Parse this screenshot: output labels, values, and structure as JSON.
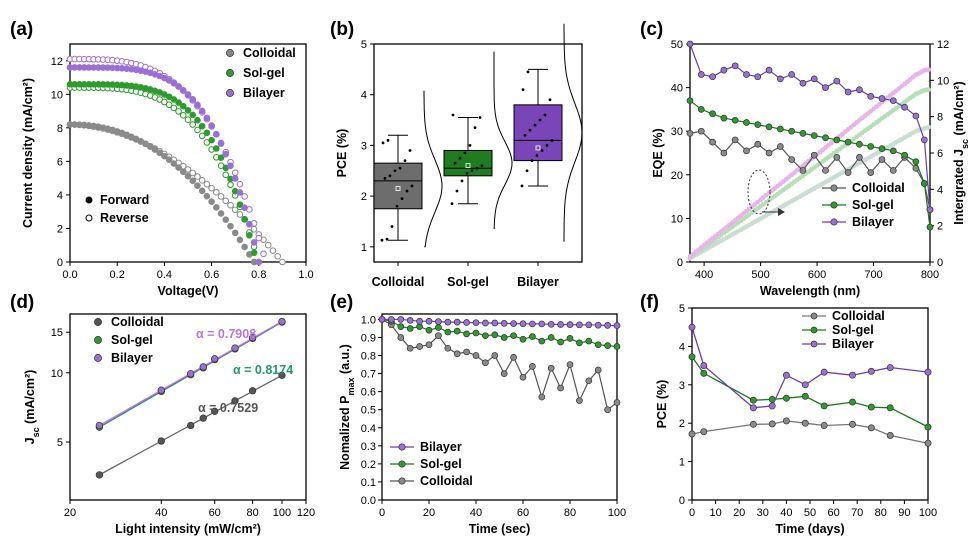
{
  "colors": {
    "colloidal": "#8a8a8a",
    "colloidal_dark": "#555555",
    "solgel": "#2e9b2e",
    "solgel_dark": "#1a7a1a",
    "bilayer": "#9a6fd8",
    "bilayer_dark": "#6a3fb0",
    "alpha_colloidal": "#555555",
    "alpha_solgel": "#1f9a6a",
    "alpha_bilayer": "#b277e0"
  },
  "chart_data": [
    {
      "id": "a",
      "panel_label": "(a)",
      "type": "scatter",
      "xlabel": "Voltage(V)",
      "ylabel": "Current density (mA/cm²)",
      "xlim": [
        0,
        1.0
      ],
      "ylim": [
        0,
        13
      ],
      "xticks": [
        "0.0",
        "0.2",
        "0.4",
        "0.6",
        "0.8",
        "1.0"
      ],
      "yticks": [
        "0",
        "2",
        "4",
        "6",
        "8",
        "10",
        "12"
      ],
      "series": [
        {
          "name": "Colloidal",
          "jsc": 8.2,
          "voc_forward": 0.78,
          "voc_reverse": 0.9,
          "shape_forward": 2.2,
          "shape_reverse": 1.9
        },
        {
          "name": "Sol-gel",
          "jsc": 10.6,
          "voc_forward": 0.79,
          "voc_reverse": 0.8,
          "shape_forward": 4.2,
          "shape_reverse": 3.6,
          "jsc_reverse": 10.4
        },
        {
          "name": "Bilayer",
          "jsc": 11.6,
          "voc_forward": 0.8,
          "voc_reverse": 0.83,
          "shape_forward": 4.2,
          "shape_reverse": 3.4,
          "jsc_reverse": 12.1
        }
      ],
      "legend_series": [
        "Colloidal",
        "Sol-gel",
        "Bilayer"
      ],
      "legend_scan": [
        "Forward",
        "Reverse"
      ]
    },
    {
      "id": "b",
      "panel_label": "(b)",
      "type": "box",
      "xlabel": "",
      "ylabel": "PCE (%)",
      "ylim": [
        0.7,
        5
      ],
      "yticks": [
        "1",
        "2",
        "3",
        "4",
        "5"
      ],
      "categories": [
        "Colloidal",
        "Sol-gel",
        "Bilayer"
      ],
      "boxes": [
        {
          "q1": 1.75,
          "median": 2.3,
          "q3": 2.65,
          "mean": 2.15,
          "whisker_low": 1.13,
          "whisker_high": 3.2,
          "points": [
            1.13,
            1.15,
            1.4,
            1.8,
            1.95,
            2.1,
            2.2,
            2.35,
            2.4,
            2.5,
            2.55,
            2.7,
            2.9,
            3.05,
            3.1
          ]
        },
        {
          "q1": 2.4,
          "median": 2.55,
          "q3": 2.9,
          "mean": 2.6,
          "whisker_low": 1.85,
          "whisker_high": 3.55,
          "points": [
            1.85,
            2.1,
            2.3,
            2.45,
            2.5,
            2.55,
            2.6,
            2.65,
            2.75,
            2.85,
            3.0,
            3.35,
            3.55,
            3.6
          ]
        },
        {
          "q1": 2.7,
          "median": 3.1,
          "q3": 3.8,
          "mean": 2.95,
          "whisker_low": 2.2,
          "whisker_high": 4.5,
          "points": [
            2.2,
            2.5,
            2.7,
            2.8,
            2.9,
            3.0,
            3.1,
            3.2,
            3.3,
            3.4,
            3.5,
            3.6,
            3.9,
            4.1,
            4.45
          ]
        }
      ]
    },
    {
      "id": "c",
      "panel_label": "(c)",
      "type": "line",
      "xlabel": "Wavelength (nm)",
      "ylabel": "EQE (%)",
      "y2label": "Intergrated J",
      "y2label_sub": "sc",
      "y2label_unit": " (mA/cm²)",
      "xlim": [
        375,
        800
      ],
      "ylim": [
        0,
        50
      ],
      "y2lim": [
        0,
        12
      ],
      "xticks": [
        "400",
        "500",
        "600",
        "700",
        "800"
      ],
      "yticks": [
        "0",
        "10",
        "20",
        "30",
        "40",
        "50"
      ],
      "y2ticks": [
        "0",
        "2",
        "4",
        "6",
        "8",
        "10",
        "12"
      ],
      "x": [
        375,
        395,
        415,
        435,
        455,
        475,
        495,
        515,
        535,
        555,
        575,
        595,
        615,
        635,
        655,
        675,
        695,
        715,
        735,
        755,
        775,
        790,
        800
      ],
      "series": [
        {
          "name": "Colloidal",
          "eqe": [
            29.5,
            30,
            27.5,
            25,
            28,
            25.5,
            27,
            25,
            26.5,
            23.5,
            21,
            24.5,
            21,
            24,
            20.5,
            24,
            20.5,
            23.5,
            21,
            24,
            21.5,
            18,
            12
          ],
          "jsc_int": [
            0.2,
            0.55,
            0.9,
            1.25,
            1.6,
            1.95,
            2.3,
            2.65,
            3.0,
            3.35,
            3.7,
            4.05,
            4.4,
            4.75,
            5.1,
            5.45,
            5.8,
            6.15,
            6.5,
            6.85,
            7.2,
            7.35,
            7.45
          ]
        },
        {
          "name": "Sol-gel",
          "eqe": [
            37,
            35,
            34,
            33,
            32.5,
            32,
            31.5,
            31,
            30.5,
            30,
            29.5,
            29,
            28.5,
            28,
            27.5,
            27,
            26.5,
            26,
            25.5,
            24.5,
            23,
            18,
            8
          ],
          "jsc_int": [
            0.25,
            0.7,
            1.15,
            1.6,
            2.05,
            2.5,
            2.95,
            3.4,
            3.85,
            4.3,
            4.75,
            5.2,
            5.65,
            6.1,
            6.55,
            7.0,
            7.45,
            7.9,
            8.35,
            8.8,
            9.25,
            9.45,
            9.5
          ]
        },
        {
          "name": "Bilayer",
          "eqe": [
            50,
            43,
            42.5,
            44,
            45,
            43,
            42.5,
            44,
            42,
            43,
            41,
            42,
            40,
            41.5,
            39,
            39.5,
            38,
            37.5,
            37,
            35.5,
            33.5,
            28,
            12
          ],
          "jsc_int": [
            0.3,
            0.8,
            1.3,
            1.8,
            2.3,
            2.8,
            3.3,
            3.8,
            4.3,
            4.8,
            5.3,
            5.8,
            6.3,
            6.8,
            7.3,
            7.8,
            8.3,
            8.8,
            9.3,
            9.8,
            10.3,
            10.55,
            10.6
          ]
        }
      ]
    },
    {
      "id": "d",
      "panel_label": "(d)",
      "type": "scatter",
      "xlabel": "Light intensity (mW/cm²)",
      "ylabel": "J",
      "ylabel_sub": "sc",
      "ylabel_unit": " (mA/cm²)",
      "xscale": "log",
      "yscale": "log",
      "xlim": [
        20,
        120
      ],
      "ylim": [
        2.8,
        18
      ],
      "xticks": [
        "20",
        "40",
        "60",
        "80",
        "100",
        "120"
      ],
      "yticks": [
        "5",
        "10",
        "15"
      ],
      "x": [
        25,
        40,
        50,
        55,
        60,
        70,
        80,
        100
      ],
      "series": [
        {
          "name": "Colloidal",
          "alpha": "α = 0.7529",
          "y": [
            3.6,
            5.05,
            5.9,
            6.35,
            6.8,
            7.55,
            8.35,
            9.75
          ]
        },
        {
          "name": "Sol-gel",
          "alpha": "α = 0.8174",
          "y": [
            5.8,
            8.3,
            9.8,
            10.5,
            11.4,
            12.7,
            14.1,
            16.6
          ]
        },
        {
          "name": "Bilayer",
          "alpha": "α = 0.7908",
          "y": [
            5.9,
            8.4,
            9.9,
            10.6,
            11.5,
            12.8,
            14.2,
            16.7
          ]
        }
      ]
    },
    {
      "id": "e",
      "panel_label": "(e)",
      "type": "line",
      "xlabel": "Time (sec)",
      "ylabel": "Nomalized P",
      "ylabel_sub": "max",
      "ylabel_unit": " (a.u.)",
      "xlim": [
        0,
        100
      ],
      "ylim": [
        0,
        1.03
      ],
      "xticks": [
        "0",
        "20",
        "40",
        "60",
        "80",
        "100"
      ],
      "yticks": [
        "0.0",
        "0.1",
        "0.2",
        "0.3",
        "0.4",
        "0.5",
        "0.6",
        "0.7",
        "0.8",
        "0.9",
        "1.0"
      ],
      "x": [
        0,
        4,
        8,
        12,
        16,
        20,
        24,
        28,
        32,
        36,
        40,
        44,
        48,
        52,
        56,
        60,
        64,
        68,
        72,
        76,
        80,
        84,
        88,
        92,
        96,
        100
      ],
      "series": [
        {
          "name": "Bilayer",
          "y": [
            1.0,
            1.0,
            1.0,
            0.995,
            0.99,
            0.99,
            0.988,
            0.985,
            0.985,
            0.983,
            0.982,
            0.98,
            0.98,
            0.978,
            0.977,
            0.976,
            0.975,
            0.975,
            0.973,
            0.972,
            0.971,
            0.97,
            0.97,
            0.968,
            0.967,
            0.966
          ]
        },
        {
          "name": "Sol-gel",
          "y": [
            1.0,
            0.99,
            0.96,
            0.95,
            0.96,
            0.94,
            0.955,
            0.93,
            0.935,
            0.92,
            0.925,
            0.91,
            0.915,
            0.9,
            0.91,
            0.89,
            0.905,
            0.88,
            0.9,
            0.875,
            0.895,
            0.87,
            0.88,
            0.86,
            0.855,
            0.85
          ]
        },
        {
          "name": "Colloidal",
          "y": [
            1.0,
            0.97,
            0.9,
            0.84,
            0.85,
            0.86,
            0.91,
            0.84,
            0.81,
            0.82,
            0.8,
            0.76,
            0.8,
            0.7,
            0.79,
            0.68,
            0.74,
            0.57,
            0.73,
            0.62,
            0.75,
            0.55,
            0.66,
            0.72,
            0.5,
            0.54
          ]
        }
      ],
      "legend_order": [
        "Bilayer",
        "Sol-gel",
        "Colloidal"
      ]
    },
    {
      "id": "f",
      "panel_label": "(f)",
      "type": "line",
      "xlabel": "Time (days)",
      "ylabel": "PCE (%)",
      "xlim": [
        0,
        100
      ],
      "ylim": [
        0,
        5
      ],
      "xticks": [
        "0",
        "10",
        "20",
        "30",
        "40",
        "50",
        "60",
        "70",
        "80",
        "90",
        "100"
      ],
      "yticks": [
        "0",
        "1",
        "2",
        "3",
        "4",
        "5"
      ],
      "x": [
        0,
        5,
        26,
        34,
        40,
        48,
        56,
        68,
        76,
        84,
        100
      ],
      "series": [
        {
          "name": "Colloidal",
          "y": [
            1.72,
            1.78,
            1.97,
            1.98,
            2.06,
            2.0,
            1.94,
            1.97,
            1.88,
            1.68,
            1.48
          ]
        },
        {
          "name": "Sol-gel",
          "y": [
            3.73,
            3.3,
            2.6,
            2.62,
            2.65,
            2.7,
            2.45,
            2.55,
            2.42,
            2.4,
            1.9
          ]
        },
        {
          "name": "Bilayer",
          "y": [
            4.5,
            3.5,
            2.4,
            2.45,
            3.25,
            3.0,
            3.33,
            3.25,
            3.35,
            3.45,
            3.33
          ]
        }
      ]
    }
  ]
}
